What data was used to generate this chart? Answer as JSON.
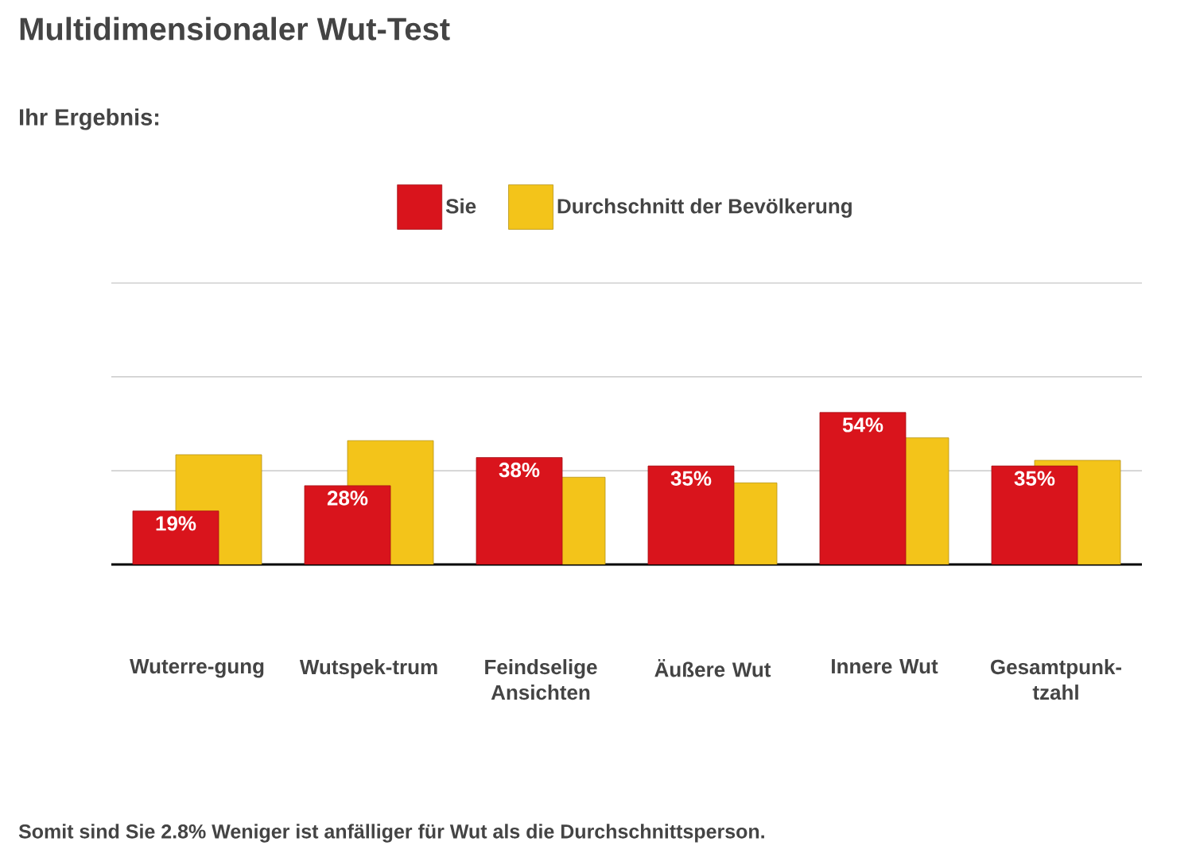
{
  "chart_data": {
    "type": "bar",
    "title": "Multidimensionaler Wut-Test",
    "subtitle": "Ihr Ergebnis:",
    "categories": [
      "Wuterre-gung",
      "Wutspek-trum",
      "Feindselige Ansichten",
      "Äußere Wut",
      "Innere Wut",
      "Gesamtpunk-tzahl"
    ],
    "series": [
      {
        "name": "Sie",
        "color": "#d9141c",
        "values": [
          19,
          28,
          38,
          35,
          54,
          35
        ],
        "value_labels": [
          "19%",
          "28%",
          "38%",
          "35%",
          "54%",
          "35%"
        ]
      },
      {
        "name": "Durchschnitt der Bevölkerung",
        "color": "#f3c41a",
        "values": [
          39,
          44,
          31,
          29,
          45,
          37
        ]
      }
    ],
    "ylim": [
      0,
      100
    ],
    "yticks": [
      {
        "value": 0,
        "label": null
      },
      {
        "value": 33.3,
        "label": null
      },
      {
        "value": 66.7,
        "label": null
      },
      {
        "value": 100,
        "label": null
      }
    ],
    "tick_labels": "x",
    "grid": "y",
    "legend": "top",
    "annotations": [
      "Somit sind Sie 2.8% Weniger ist anfälliger für Wut als die Durchschnittsperson."
    ]
  }
}
